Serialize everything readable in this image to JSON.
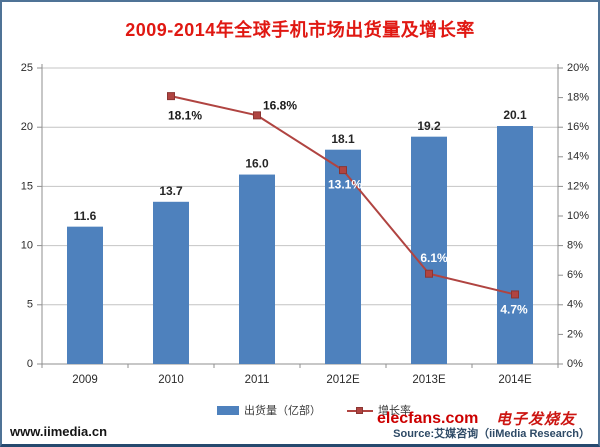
{
  "title": "2009-2014年全球手机市场出货量及增长率",
  "chart_data": {
    "type": "bar",
    "subtype": "bar-line-combo",
    "categories": [
      "2009",
      "2010",
      "2011",
      "2012E",
      "2013E",
      "2014E"
    ],
    "series": [
      {
        "name": "出货量（亿部）",
        "chart_type": "bar",
        "axis": "left",
        "color": "#4e81bd",
        "values": [
          11.6,
          13.7,
          16.0,
          18.1,
          19.2,
          20.1
        ],
        "value_labels": [
          "11.6",
          "13.7",
          "16.0",
          "18.1",
          "19.2",
          "20.1"
        ],
        "value_label_color": "#262626"
      },
      {
        "name": "增长率",
        "chart_type": "line",
        "axis": "right",
        "color": "#b04441",
        "marker": "square",
        "marker_border": "#8b3532",
        "values": [
          null,
          18.1,
          16.8,
          13.1,
          6.1,
          4.7
        ],
        "value_labels": [
          null,
          "18.1%",
          "16.8%",
          "13.1%",
          "6.1%",
          "4.7%"
        ],
        "value_label_colors": [
          null,
          "#1a1a1a",
          "#1a1a1a",
          "#ffffff",
          "#ffffff",
          "#ffffff"
        ]
      }
    ],
    "left_axis": {
      "min": 0,
      "max": 25,
      "step": 5,
      "tick_labels": [
        "0",
        "5",
        "10",
        "15",
        "20",
        "25"
      ]
    },
    "right_axis": {
      "min": 0,
      "max": 20,
      "step": 2,
      "tick_labels": [
        "0%",
        "2%",
        "4%",
        "6%",
        "8%",
        "10%",
        "12%",
        "14%",
        "16%",
        "18%",
        "20%"
      ]
    },
    "grid": true,
    "legend_position": "bottom"
  },
  "legend": {
    "items": [
      {
        "label": "出货量（亿部）",
        "swatch": "bar"
      },
      {
        "label": "增长率",
        "swatch": "line-marker"
      }
    ]
  },
  "footer": {
    "site_url": "www.iimedia.cn",
    "watermark_site": "elecfans.com",
    "watermark_brand": "电子发烧友",
    "source": "Source:艾媒咨询（iiMedia Research）"
  },
  "colors": {
    "title": "#e01812",
    "bar": "#4e81bd",
    "line": "#b04441",
    "marker_border": "#8b3532",
    "grid": "#c4c4c4",
    "axis": "#8f8f8f",
    "tick_text": "#2b2b2b",
    "watermark_red": "#cc0000",
    "source_text": "#2e4a66",
    "frame_border": "#4f7396"
  }
}
